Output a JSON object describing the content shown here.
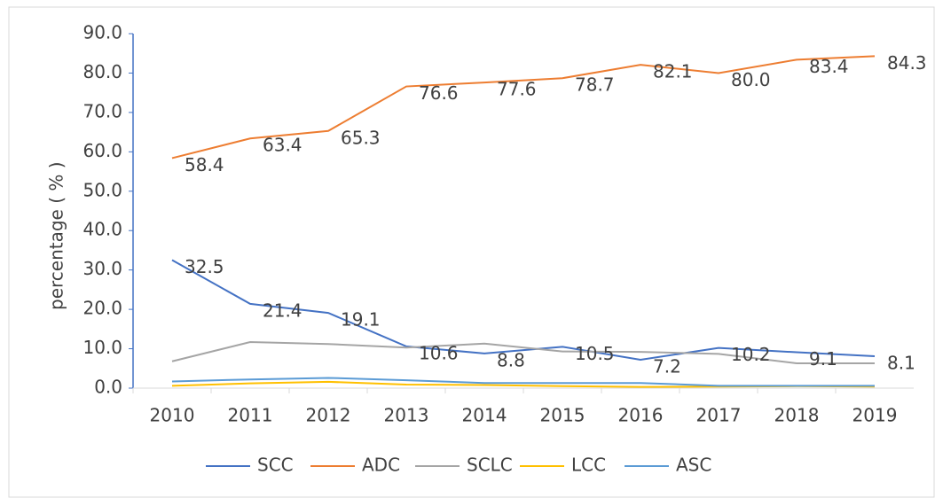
{
  "chart_data": {
    "type": "line",
    "ylabel": "percentage ( % )",
    "categories": [
      "2010",
      "2011",
      "2012",
      "2013",
      "2014",
      "2015",
      "2016",
      "2017",
      "2018",
      "2019"
    ],
    "series": [
      {
        "name": "SCC",
        "color": "#4472c4",
        "values": [
          32.5,
          21.4,
          19.1,
          10.6,
          8.8,
          10.5,
          7.2,
          10.2,
          9.1,
          8.1
        ],
        "value_labels": [
          "32.5",
          "21.4",
          "19.1",
          "10.6",
          "8.8",
          "10.5",
          "7.2",
          "10.2",
          "9.1",
          "8.1"
        ]
      },
      {
        "name": "ADC",
        "color": "#ed7d31",
        "values": [
          58.4,
          63.4,
          65.3,
          76.6,
          77.6,
          78.7,
          82.1,
          80.0,
          83.4,
          84.3
        ],
        "value_labels": [
          "58.4",
          "63.4",
          "65.3",
          "76.6",
          "77.6",
          "78.7",
          "82.1",
          "80.0",
          "83.4",
          "84.3"
        ]
      },
      {
        "name": "SCLC",
        "color": "#a5a5a5",
        "values": [
          6.8,
          11.7,
          11.2,
          10.3,
          11.3,
          9.3,
          9.2,
          8.7,
          6.3,
          6.3
        ]
      },
      {
        "name": "LCC",
        "color": "#ffc000",
        "values": [
          0.6,
          1.2,
          1.6,
          0.9,
          0.8,
          0.5,
          0.3,
          0.4,
          0.5,
          0.4
        ]
      },
      {
        "name": "ASC",
        "color": "#5b9bd5",
        "values": [
          1.7,
          2.2,
          2.6,
          2.0,
          1.3,
          1.3,
          1.3,
          0.6,
          0.6,
          0.6
        ]
      }
    ],
    "ylim": [
      0,
      90
    ],
    "yticks": [
      {
        "value": 0,
        "label": "0.0"
      },
      {
        "value": 10,
        "label": "10.0"
      },
      {
        "value": 20,
        "label": "20.0"
      },
      {
        "value": 30,
        "label": "30.0"
      },
      {
        "value": 40,
        "label": "40.0"
      },
      {
        "value": 50,
        "label": "50.0"
      },
      {
        "value": 60,
        "label": "60.0"
      },
      {
        "value": 70,
        "label": "70.0"
      },
      {
        "value": 80,
        "label": "80.0"
      },
      {
        "value": 90,
        "label": "90.0"
      }
    ],
    "legend": "bottom"
  }
}
